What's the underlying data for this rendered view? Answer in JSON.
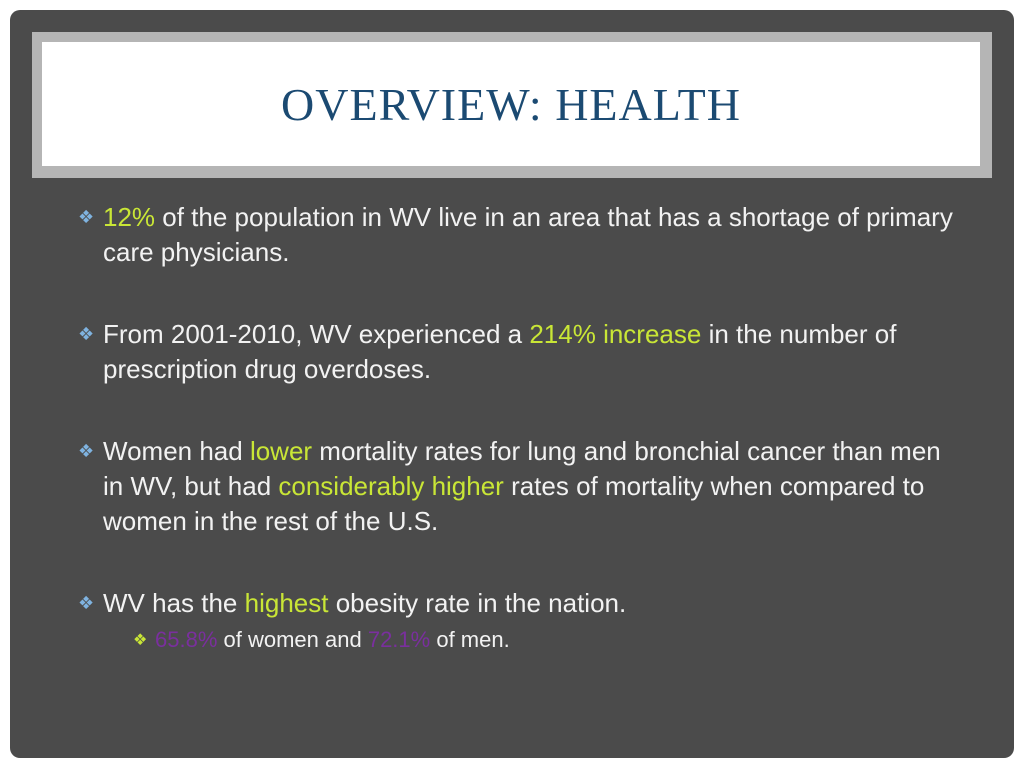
{
  "title": "OVERVIEW: HEALTH",
  "bullets": [
    {
      "segments": [
        {
          "text": "12%",
          "color": "#c9e636"
        },
        {
          "text": " of the population in WV live in an area that has a shortage of primary care physicians."
        }
      ]
    },
    {
      "segments": [
        {
          "text": "From 2001-2010, WV experienced a "
        },
        {
          "text": "214% increase",
          "color": "#c9e636"
        },
        {
          "text": " in the number of prescription drug overdoses."
        }
      ]
    },
    {
      "segments": [
        {
          "text": "Women had "
        },
        {
          "text": "lower",
          "color": "#c9e636"
        },
        {
          "text": " mortality rates for lung and bronchial cancer than men in WV, but had "
        },
        {
          "text": "considerably higher",
          "color": "#c9e636"
        },
        {
          "text": " rates of mortality when compared to women in the rest of the U.S."
        }
      ]
    },
    {
      "segments": [
        {
          "text": "WV has the "
        },
        {
          "text": "highest",
          "color": "#c9e636"
        },
        {
          "text": " obesity rate in the nation."
        }
      ],
      "subitems": [
        {
          "segments": [
            {
              "text": "65.8%",
              "color": "#7a2f9e"
            },
            {
              "text": " of women and "
            },
            {
              "text": "72.1%",
              "color": "#7a2f9e"
            },
            {
              "text": " of men."
            }
          ]
        }
      ]
    }
  ]
}
